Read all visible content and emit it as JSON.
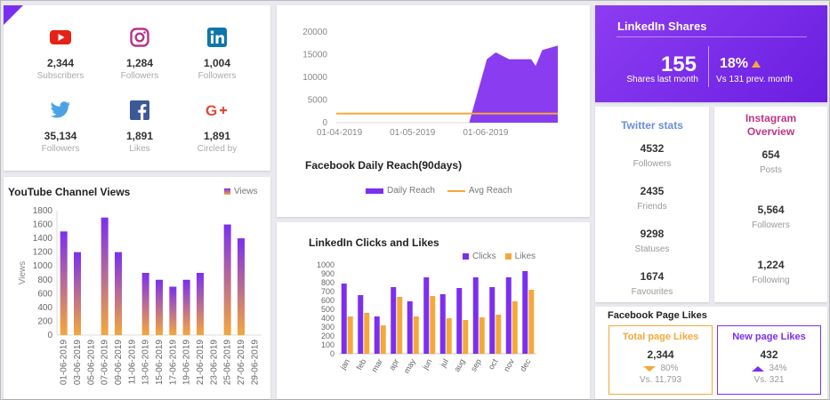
{
  "social": {
    "items": [
      {
        "icon": "youtube-icon",
        "value": "2,344",
        "label": "Subscribers",
        "color": "#e62117"
      },
      {
        "icon": "instagram-icon",
        "value": "1,284",
        "label": "Followers",
        "color": "#b5338c"
      },
      {
        "icon": "linkedin-icon",
        "value": "1,004",
        "label": "Followers",
        "color": "#0e76a8"
      },
      {
        "icon": "twitter-icon",
        "value": "35,134",
        "label": "Followers",
        "color": "#4ba3e6"
      },
      {
        "icon": "facebook-icon",
        "value": "1,891",
        "label": "Likes",
        "color": "#3b5998"
      },
      {
        "icon": "google-plus-icon",
        "value": "1,891",
        "label": "Circled by",
        "color": "#dd4b39"
      }
    ]
  },
  "fb_reach": {
    "title": "Facebook Daily Reach(90days)",
    "legend_area": "Daily Reach",
    "legend_line": "Avg Reach"
  },
  "yt_views": {
    "title": "YouTube Channel Views",
    "legend": "Views"
  },
  "li_clicks": {
    "title": "LinkedIn Clicks and Likes",
    "legend_clicks": "Clicks",
    "legend_likes": "Likes"
  },
  "li_shares": {
    "title": "LinkedIn Shares",
    "value": "155",
    "label": "Shares last month",
    "pct": "18%",
    "sub": "Vs 131 prev. month"
  },
  "twitter": {
    "title": "Twitter stats",
    "stats": [
      {
        "value": "4532",
        "label": "Followers"
      },
      {
        "value": "2435",
        "label": "Friends"
      },
      {
        "value": "9298",
        "label": "Statuses"
      },
      {
        "value": "1674",
        "label": "Favourites"
      }
    ]
  },
  "instagram": {
    "title_line1": "Instagram",
    "title_line2": "Overview",
    "stats": [
      {
        "value": "654",
        "label": "Posts"
      },
      {
        "value": "5,564",
        "label": "Followers"
      },
      {
        "value": "1,224",
        "label": "Following"
      }
    ]
  },
  "fb_page": {
    "title": "Facebook Page Likes",
    "total": {
      "title": "Total page Likes",
      "value": "2,344",
      "pct": "80%",
      "sub": "Vs. 11,793"
    },
    "new": {
      "title": "New page Likes",
      "value": "432",
      "pct": "34%",
      "sub": "Vs. 321"
    }
  },
  "colors": {
    "purple": "#7b2ff0",
    "orange": "#f5a83a",
    "insta_pink": "#c13584",
    "twitter_blue": "#6a8fd8"
  },
  "chart_data": [
    {
      "type": "area",
      "x": [
        "01-04-2019",
        "01-05-2019",
        "01-06-2019"
      ],
      "series": [
        {
          "name": "Daily Reach",
          "type": "area",
          "points": [
            [
              0,
              0
            ],
            [
              0.6,
              0
            ],
            [
              0.68,
              14000
            ],
            [
              0.72,
              15500
            ],
            [
              0.78,
              14000
            ],
            [
              0.88,
              14000
            ],
            [
              0.9,
              12500
            ],
            [
              0.93,
              16000
            ],
            [
              1.0,
              17000
            ]
          ]
        },
        {
          "name": "Avg Reach",
          "type": "line",
          "value": 2000
        }
      ],
      "yticks": [
        0,
        5000,
        10000,
        15000,
        20000
      ],
      "ylim": [
        0,
        20000
      ]
    },
    {
      "type": "bar",
      "ylabel": "Views",
      "categories": [
        "01-06-2019",
        "03-06-2019",
        "05-06-2019",
        "07-06-2019",
        "09-06-2019",
        "11-06-2019",
        "13-06-2019",
        "15-06-2019",
        "17-06-2019",
        "19-06-2019",
        "21-06-2019",
        "23-06-2019",
        "25-06-2019",
        "27-06-2019",
        "29-06-2019"
      ],
      "series": [
        {
          "name": "Views",
          "values": [
            1500,
            1200,
            0,
            1700,
            1200,
            0,
            900,
            800,
            700,
            800,
            900,
            0,
            1600,
            1400,
            0
          ]
        }
      ],
      "yticks": [
        0,
        200,
        400,
        600,
        800,
        1000,
        1200,
        1400,
        1600,
        1800
      ],
      "ylim": [
        0,
        1800
      ]
    },
    {
      "type": "bar",
      "categories": [
        "jan",
        "feb",
        "mar",
        "apr",
        "may",
        "jun",
        "jul",
        "aug",
        "sep",
        "oct",
        "nov",
        "dec"
      ],
      "series": [
        {
          "name": "Clicks",
          "values": [
            790,
            660,
            420,
            750,
            590,
            860,
            670,
            740,
            860,
            750,
            860,
            930
          ]
        },
        {
          "name": "Likes",
          "values": [
            420,
            460,
            320,
            640,
            420,
            650,
            400,
            380,
            410,
            440,
            590,
            720
          ]
        }
      ],
      "yticks": [
        0,
        100,
        200,
        300,
        400,
        500,
        600,
        700,
        800,
        900,
        1000
      ],
      "ylim": [
        0,
        1000
      ]
    }
  ]
}
